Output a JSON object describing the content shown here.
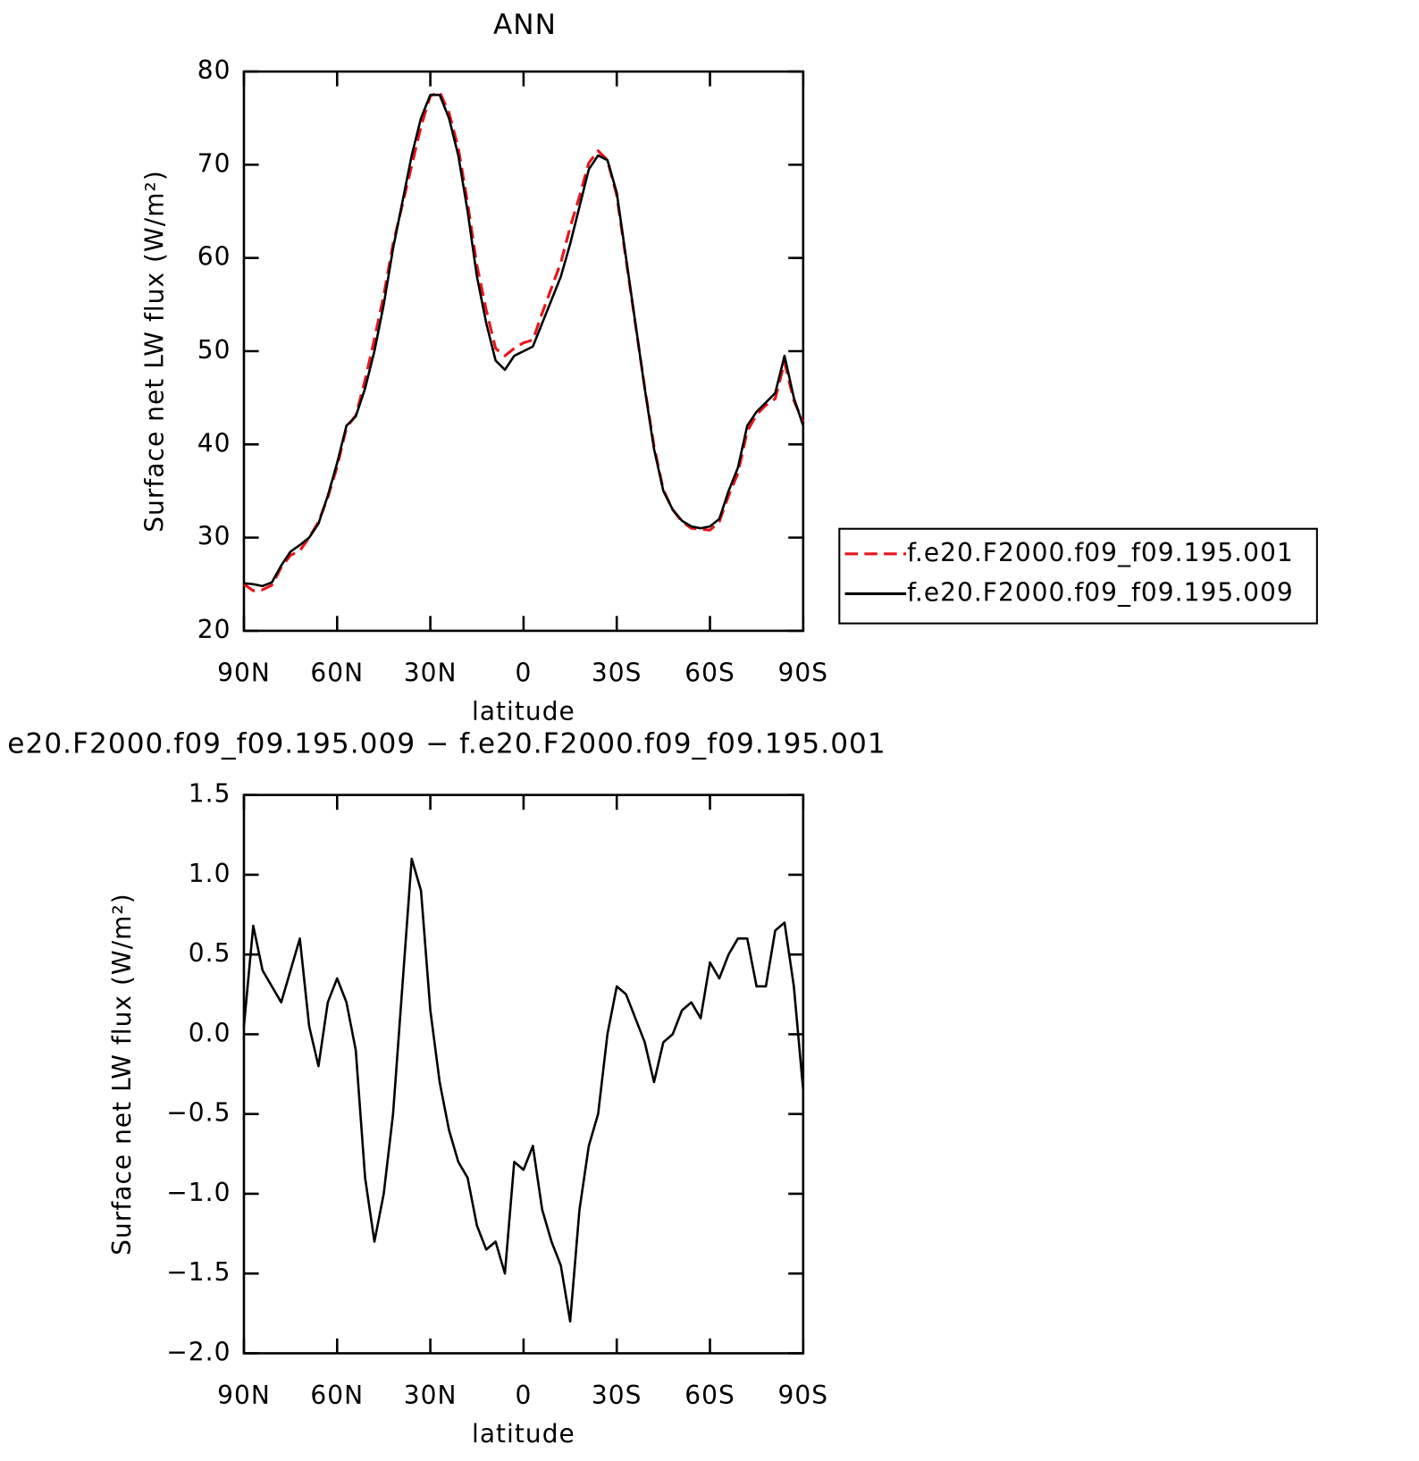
{
  "chart_data": [
    {
      "type": "line",
      "title": "ANN",
      "x_label": "latitude",
      "y_label": "Surface net LW flux (W/m²)",
      "x": [
        90,
        87,
        84,
        81,
        78,
        75,
        72,
        69,
        66,
        63,
        60,
        57,
        54,
        51,
        48,
        45,
        42,
        39,
        36,
        33,
        30,
        27,
        24,
        21,
        18,
        15,
        12,
        9,
        6,
        3,
        0,
        -3,
        -6,
        -9,
        -12,
        -15,
        -18,
        -21,
        -24,
        -27,
        -30,
        -33,
        -36,
        -39,
        -42,
        -45,
        -48,
        -51,
        -54,
        -57,
        -60,
        -63,
        -66,
        -69,
        -72,
        -75,
        -78,
        -81,
        -84,
        -87,
        -90
      ],
      "series": [
        {
          "name": "f.e20.F2000.f09_f09.195.001",
          "color": "#e8141c",
          "dash": "dashed",
          "values": [
            25.0,
            24.3,
            24.4,
            24.9,
            26.8,
            28.1,
            28.6,
            30.0,
            31.7,
            34.3,
            37.6,
            41.8,
            43.1,
            46.9,
            51.3,
            56.0,
            61.5,
            65.7,
            69.9,
            74.1,
            77.4,
            77.8,
            75.6,
            71.8,
            65.9,
            59.2,
            54.4,
            50.3,
            49.5,
            50.3,
            50.9,
            51.2,
            54.1,
            56.8,
            59.5,
            63.3,
            66.6,
            70.2,
            71.5,
            70.5,
            66.7,
            59.8,
            52.9,
            46.1,
            39.8,
            35.1,
            33.0,
            31.7,
            31.0,
            30.9,
            30.8,
            31.7,
            34.5,
            36.9,
            41.4,
            43.2,
            44.2,
            44.9,
            48.8,
            44.7,
            42.4
          ]
        },
        {
          "name": "f.e20.F2000.f09_f09.195.009",
          "color": "#000000",
          "dash": "solid",
          "values": [
            25.1,
            25.0,
            24.8,
            25.2,
            27.0,
            28.5,
            29.2,
            30.0,
            31.5,
            34.5,
            38.0,
            42.0,
            43.0,
            46.0,
            50.0,
            55.0,
            61.0,
            66.0,
            71.0,
            75.0,
            77.5,
            77.5,
            75.0,
            71.0,
            65.0,
            58.0,
            53.0,
            49.0,
            48.0,
            49.5,
            50.0,
            50.5,
            53.0,
            55.5,
            58.0,
            61.5,
            65.5,
            69.5,
            71.0,
            70.5,
            67.0,
            60.0,
            53.0,
            46.0,
            39.5,
            35.0,
            33.0,
            31.8,
            31.2,
            31.0,
            31.2,
            32.0,
            35.0,
            37.5,
            42.0,
            43.5,
            44.5,
            45.5,
            49.5,
            45.0,
            42.0
          ]
        }
      ],
      "xlim": [
        90,
        -90
      ],
      "xticks": [
        {
          "value": 90,
          "label": "90N"
        },
        {
          "value": 60,
          "label": "60N"
        },
        {
          "value": 30,
          "label": "30N"
        },
        0,
        {
          "value": -30,
          "label": "30S"
        },
        {
          "value": -60,
          "label": "60S"
        },
        {
          "value": -90,
          "label": "90S"
        }
      ],
      "ylim": [
        20,
        80
      ],
      "yticks": [
        20,
        30,
        40,
        50,
        60,
        70,
        80
      ],
      "legend": "right"
    },
    {
      "type": "line",
      "title": "e20.F2000.f09_f09.195.009 − f.e20.F2000.f09_f09.195.001",
      "x_label": "latitude",
      "y_label": "Surface net LW flux (W/m²)",
      "x": [
        90,
        87,
        84,
        81,
        78,
        75,
        72,
        69,
        66,
        63,
        60,
        57,
        54,
        51,
        48,
        45,
        42,
        39,
        36,
        33,
        30,
        27,
        24,
        21,
        18,
        15,
        12,
        9,
        6,
        3,
        0,
        -3,
        -6,
        -9,
        -12,
        -15,
        -18,
        -21,
        -24,
        -27,
        -30,
        -33,
        -36,
        -39,
        -42,
        -45,
        -48,
        -51,
        -54,
        -57,
        -60,
        -63,
        -66,
        -69,
        -72,
        -75,
        -78,
        -81,
        -84,
        -87,
        -90
      ],
      "series": [
        {
          "color": "#000000",
          "dash": "solid",
          "values": [
            0.05,
            0.68,
            0.4,
            0.3,
            0.2,
            0.4,
            0.6,
            0.05,
            -0.2,
            0.2,
            0.35,
            0.2,
            -0.1,
            -0.9,
            -1.3,
            -1.0,
            -0.5,
            0.3,
            1.1,
            0.9,
            0.15,
            -0.3,
            -0.6,
            -0.8,
            -0.9,
            -1.2,
            -1.35,
            -1.3,
            -1.5,
            -0.8,
            -0.85,
            -0.7,
            -1.1,
            -1.3,
            -1.45,
            -1.8,
            -1.1,
            -0.7,
            -0.5,
            0.0,
            0.3,
            0.25,
            0.1,
            -0.05,
            -0.3,
            -0.05,
            0.0,
            0.15,
            0.2,
            0.1,
            0.45,
            0.35,
            0.5,
            0.6,
            0.6,
            0.3,
            0.3,
            0.65,
            0.7,
            0.3,
            -0.35
          ]
        }
      ],
      "xlim": [
        90,
        -90
      ],
      "xticks": [
        {
          "value": 90,
          "label": "90N"
        },
        {
          "value": 60,
          "label": "60N"
        },
        {
          "value": 30,
          "label": "30N"
        },
        0,
        {
          "value": -30,
          "label": "30S"
        },
        {
          "value": -60,
          "label": "60S"
        },
        {
          "value": -90,
          "label": "90S"
        }
      ],
      "ylim": [
        -2.0,
        1.5
      ],
      "yticks": [
        {
          "value": -2.0,
          "label": "−2.0"
        },
        {
          "value": -1.5,
          "label": "−1.5"
        },
        {
          "value": -1.0,
          "label": "−1.0"
        },
        {
          "value": -0.5,
          "label": "−0.5"
        },
        {
          "value": 0.0,
          "label": "0.0"
        },
        0.5,
        {
          "value": 1.0,
          "label": "1.0"
        },
        1.5
      ]
    }
  ]
}
